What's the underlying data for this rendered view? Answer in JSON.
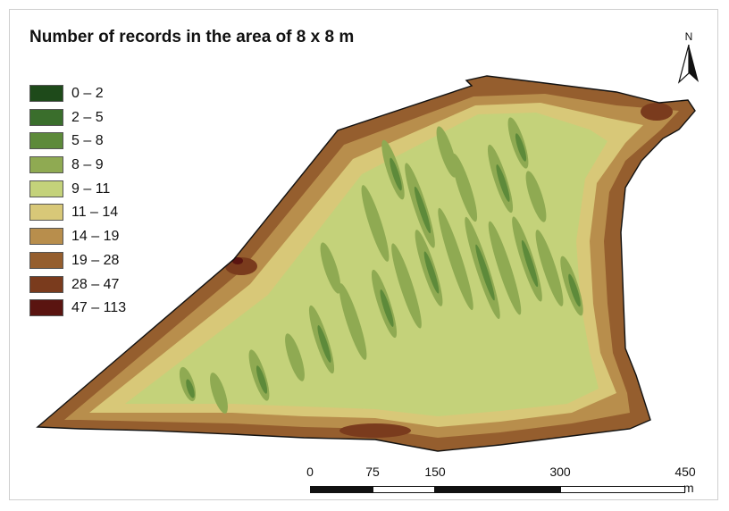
{
  "title": "Number of records in the area of 8 x 8 m",
  "north_arrow": {
    "label": "N",
    "icon": "north-arrow-icon"
  },
  "legend": [
    {
      "label": "0 – 2",
      "color": "#1e4a1a"
    },
    {
      "label": "2 – 5",
      "color": "#3a6e2c"
    },
    {
      "label": "5 – 8",
      "color": "#5d8a3a"
    },
    {
      "label": "8 – 9",
      "color": "#8faa52"
    },
    {
      "label": "9 – 11",
      "color": "#c4d27a"
    },
    {
      "label": "11 – 14",
      "color": "#d8c878"
    },
    {
      "label": "14 – 19",
      "color": "#b88e4c"
    },
    {
      "label": "19 – 28",
      "color": "#955e2e"
    },
    {
      "label": "28 – 47",
      "color": "#7a3b1d"
    },
    {
      "label": "47 – 113",
      "color": "#5a1410"
    }
  ],
  "scale_bar": {
    "ticks": [
      {
        "label": "0",
        "value": 0
      },
      {
        "label": "75",
        "value": 75
      },
      {
        "label": "150",
        "value": 150
      },
      {
        "label": "300",
        "value": 300
      },
      {
        "label": "450",
        "value": 450
      }
    ],
    "unit": "m"
  }
}
